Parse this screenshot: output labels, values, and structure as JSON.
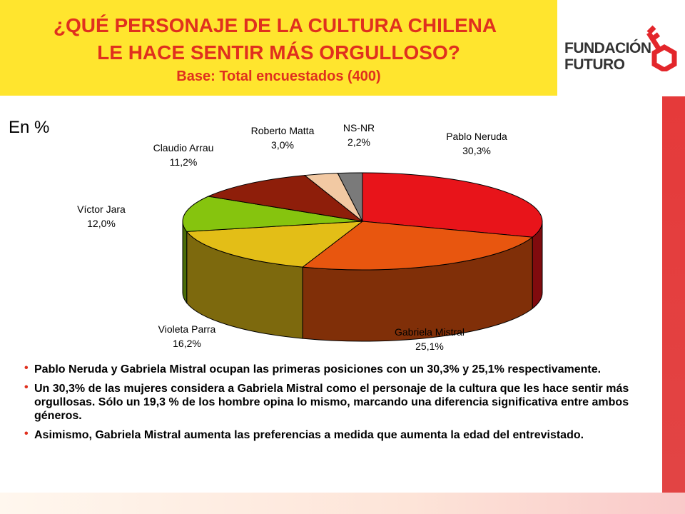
{
  "header": {
    "title_line1": "¿QUÉ PERSONAJE DE LA CULTURA CHILENA",
    "title_line2": "LE HACE SENTIR MÁS ORGULLOSO?",
    "subtitle": "Base: Total encuestados (400)"
  },
  "logo": {
    "line1": "FUNDACIÓN",
    "line2": "FUTURO",
    "icon": "key-icon"
  },
  "unit_label": "En %",
  "chart_data": {
    "type": "pie",
    "style": "3d-exploded-ellipse",
    "slices": [
      {
        "label": "Pablo Neruda",
        "value_text": "30,3%",
        "value": 30.3,
        "color": "#E8141A"
      },
      {
        "label": "Gabriela Mistral",
        "value_text": "25,1%",
        "value": 25.1,
        "color": "#E8560F"
      },
      {
        "label": "Violeta Parra",
        "value_text": "16,2%",
        "value": 16.2,
        "color": "#E3BE17"
      },
      {
        "label": "Víctor Jara",
        "value_text": "12,0%",
        "value": 12.0,
        "color": "#86C40E"
      },
      {
        "label": "Claudio Arrau",
        "value_text": "11,2%",
        "value": 11.2,
        "color": "#8E1E0A"
      },
      {
        "label": "Roberto Matta",
        "value_text": "3,0%",
        "value": 3.0,
        "color": "#F2C9A3"
      },
      {
        "label": "NS-NR",
        "value_text": "2,2%",
        "value": 2.2,
        "color": "#7A7A7A"
      }
    ]
  },
  "bullets": [
    "Pablo Neruda y Gabriela Mistral ocupan las primeras posiciones con un 30,3% y 25,1% respectivamente.",
    "Un 30,3% de las mujeres considera a Gabriela Mistral como el personaje de la cultura que les hace sentir más orgullosas. Sólo un 19,3 % de los hombre opina lo mismo, marcando una diferencia significativa entre ambos géneros.",
    "Asimismo, Gabriela Mistral aumenta las preferencias a medida que aumenta la edad del entrevistado."
  ],
  "colors": {
    "header_bg": "#FFE52E",
    "title": "#E0301E",
    "side_bar": "#E53A3A",
    "logo_accent": "#E3262B"
  }
}
